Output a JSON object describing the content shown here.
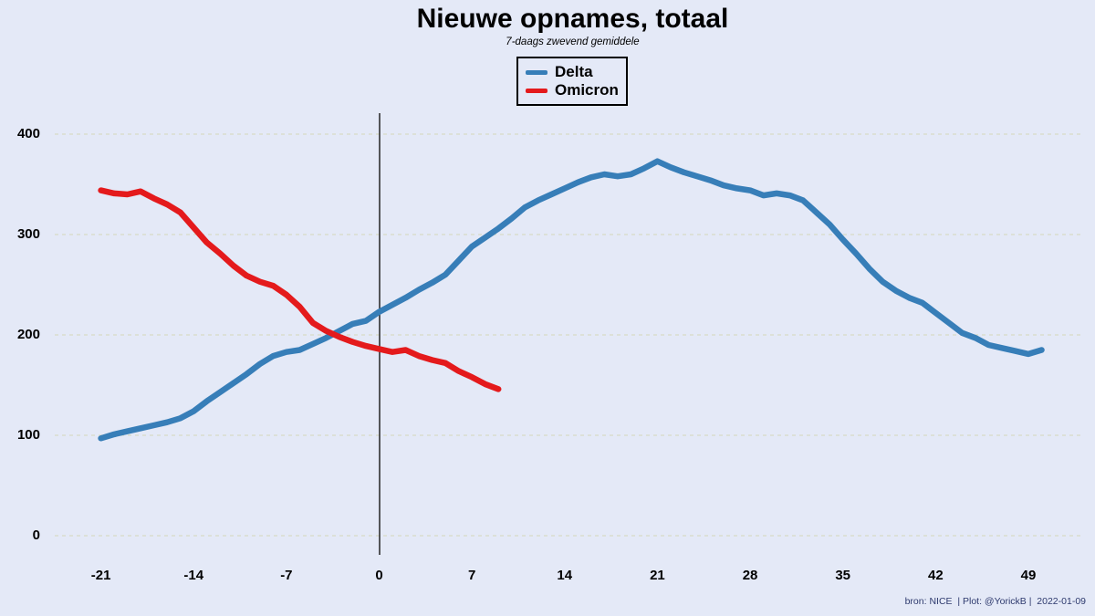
{
  "colors": {
    "background": "#e4e9f7",
    "grid": "#d8dcc6",
    "zero_line": "#161616",
    "delta": "#377eb8",
    "omicron": "#e41a1c",
    "attribution_text": "#2e3a6e"
  },
  "attribution": "bron: NICE  | Plot: @YorickB |  2022-01-09",
  "chart_data": {
    "type": "line",
    "title": "Nieuwe opnames, totaal",
    "subtitle": "7-daags zwevend gemiddele",
    "xlabel": "",
    "ylabel": "",
    "x_ticks": [
      -21,
      -14,
      -7,
      0,
      7,
      14,
      21,
      28,
      35,
      42,
      49
    ],
    "y_ticks": [
      0,
      100,
      200,
      300,
      400
    ],
    "xlim": [
      -24.5,
      53.2
    ],
    "ylim": [
      0,
      421
    ],
    "grid": "horizontal-dashed",
    "zero_vline_x": 0,
    "legend_position": "top-center",
    "series": [
      {
        "name": "Delta",
        "color": "#377eb8",
        "points": [
          [
            -21,
            97
          ],
          [
            -20,
            101
          ],
          [
            -19,
            104
          ],
          [
            -18,
            107
          ],
          [
            -17,
            110
          ],
          [
            -16,
            113
          ],
          [
            -15,
            117
          ],
          [
            -14,
            124
          ],
          [
            -13,
            134
          ],
          [
            -12,
            143
          ],
          [
            -11,
            152
          ],
          [
            -10,
            161
          ],
          [
            -9,
            171
          ],
          [
            -8,
            179
          ],
          [
            -7,
            183
          ],
          [
            -6,
            185
          ],
          [
            -5,
            191
          ],
          [
            -4,
            197
          ],
          [
            -3,
            204
          ],
          [
            -2,
            211
          ],
          [
            -1,
            214
          ],
          [
            0,
            223
          ],
          [
            1,
            230
          ],
          [
            2,
            237
          ],
          [
            3,
            245
          ],
          [
            4,
            252
          ],
          [
            5,
            260
          ],
          [
            6,
            274
          ],
          [
            7,
            288
          ],
          [
            8,
            297
          ],
          [
            9,
            306
          ],
          [
            10,
            316
          ],
          [
            11,
            327
          ],
          [
            12,
            334
          ],
          [
            13,
            340
          ],
          [
            14,
            346
          ],
          [
            15,
            352
          ],
          [
            16,
            357
          ],
          [
            17,
            360
          ],
          [
            18,
            358
          ],
          [
            19,
            360
          ],
          [
            20,
            366
          ],
          [
            21,
            373
          ],
          [
            22,
            367
          ],
          [
            23,
            362
          ],
          [
            24,
            358
          ],
          [
            25,
            354
          ],
          [
            26,
            349
          ],
          [
            27,
            346
          ],
          [
            28,
            344
          ],
          [
            29,
            339
          ],
          [
            30,
            341
          ],
          [
            31,
            339
          ],
          [
            32,
            334
          ],
          [
            33,
            322
          ],
          [
            34,
            310
          ],
          [
            35,
            295
          ],
          [
            36,
            281
          ],
          [
            37,
            266
          ],
          [
            38,
            253
          ],
          [
            39,
            244
          ],
          [
            40,
            237
          ],
          [
            41,
            232
          ],
          [
            42,
            222
          ],
          [
            43,
            212
          ],
          [
            44,
            202
          ],
          [
            45,
            197
          ],
          [
            46,
            190
          ],
          [
            47,
            187
          ],
          [
            48,
            184
          ],
          [
            49,
            181
          ],
          [
            50,
            185
          ]
        ]
      },
      {
        "name": "Omicron",
        "color": "#e41a1c",
        "points": [
          [
            -21,
            344
          ],
          [
            -20,
            341
          ],
          [
            -19,
            340
          ],
          [
            -18,
            343
          ],
          [
            -17,
            336
          ],
          [
            -16,
            330
          ],
          [
            -15,
            322
          ],
          [
            -14,
            307
          ],
          [
            -13,
            292
          ],
          [
            -12,
            281
          ],
          [
            -11,
            269
          ],
          [
            -10,
            259
          ],
          [
            -9,
            253
          ],
          [
            -8,
            249
          ],
          [
            -7,
            240
          ],
          [
            -6,
            228
          ],
          [
            -5,
            212
          ],
          [
            -4,
            204
          ],
          [
            -3,
            198
          ],
          [
            -2,
            193
          ],
          [
            -1,
            189
          ],
          [
            0,
            186
          ],
          [
            1,
            183
          ],
          [
            2,
            185
          ],
          [
            3,
            179
          ],
          [
            4,
            175
          ],
          [
            5,
            172
          ],
          [
            6,
            164
          ],
          [
            7,
            158
          ],
          [
            8,
            151
          ],
          [
            9,
            146
          ]
        ]
      }
    ]
  }
}
